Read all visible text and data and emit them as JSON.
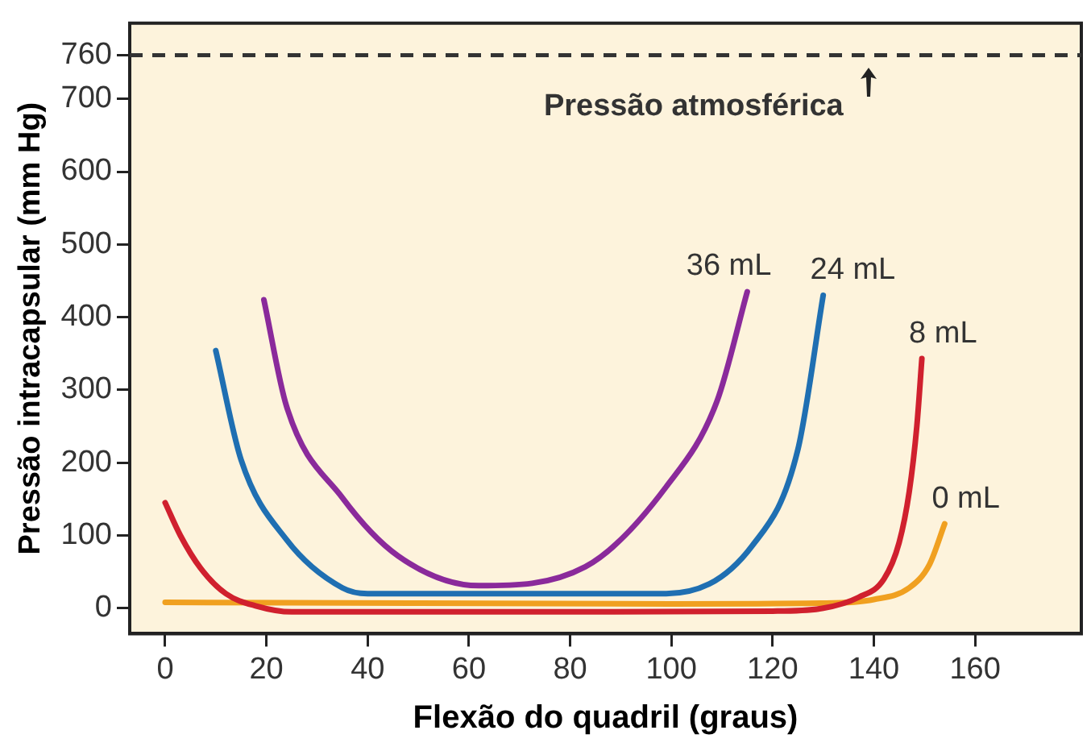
{
  "chart_data": {
    "type": "line",
    "xlabel": "Flexão do quadril (graus)",
    "ylabel": "Pressão intracapsular (mm Hg)",
    "xlim": [
      -7,
      181
    ],
    "xticks": [
      0,
      20,
      40,
      60,
      80,
      100,
      120,
      140,
      160
    ],
    "ylim": [
      -35,
      804
    ],
    "yticks": [
      0,
      100,
      200,
      300,
      400,
      500,
      600,
      700,
      760
    ],
    "grid": false,
    "legend": false,
    "marker": "none",
    "line_style": "solid",
    "ref_lines": [
      {
        "axis": "y",
        "value": 760,
        "label": "Pressão atmosférica",
        "color": "#333333",
        "line_style": "dashed"
      }
    ],
    "series": [
      {
        "name": "36 mL",
        "color": "#8a2a9b",
        "x": [
          19.5,
          24,
          35,
          46,
          62,
          83,
          99,
          109,
          115
        ],
        "values": [
          424,
          277,
          152,
          72,
          31,
          57,
          167,
          284,
          435
        ]
      },
      {
        "name": "24 mL",
        "color": "#1f6fb2",
        "x": [
          10,
          15,
          24,
          35,
          40,
          70,
          99,
          116,
          125,
          130
        ],
        "values": [
          354,
          204,
          94,
          28,
          20,
          20,
          20,
          86,
          218,
          430
        ]
      },
      {
        "name": "8 mL",
        "color": "#d0202e",
        "x": [
          0,
          3,
          7,
          12,
          18,
          25,
          40,
          80,
          120,
          130,
          137,
          142,
          145,
          147,
          148.5,
          149.5
        ],
        "values": [
          145,
          100,
          55,
          20,
          3,
          -5,
          -5,
          -5,
          -4,
          0,
          15,
          40,
          90,
          160,
          250,
          343
        ]
      },
      {
        "name": "0 mL",
        "color": "#f0a020",
        "x": [
          0,
          50,
          100,
          130,
          140,
          147,
          151,
          154
        ],
        "values": [
          8,
          7,
          6,
          7,
          12,
          28,
          60,
          116
        ]
      }
    ]
  }
}
